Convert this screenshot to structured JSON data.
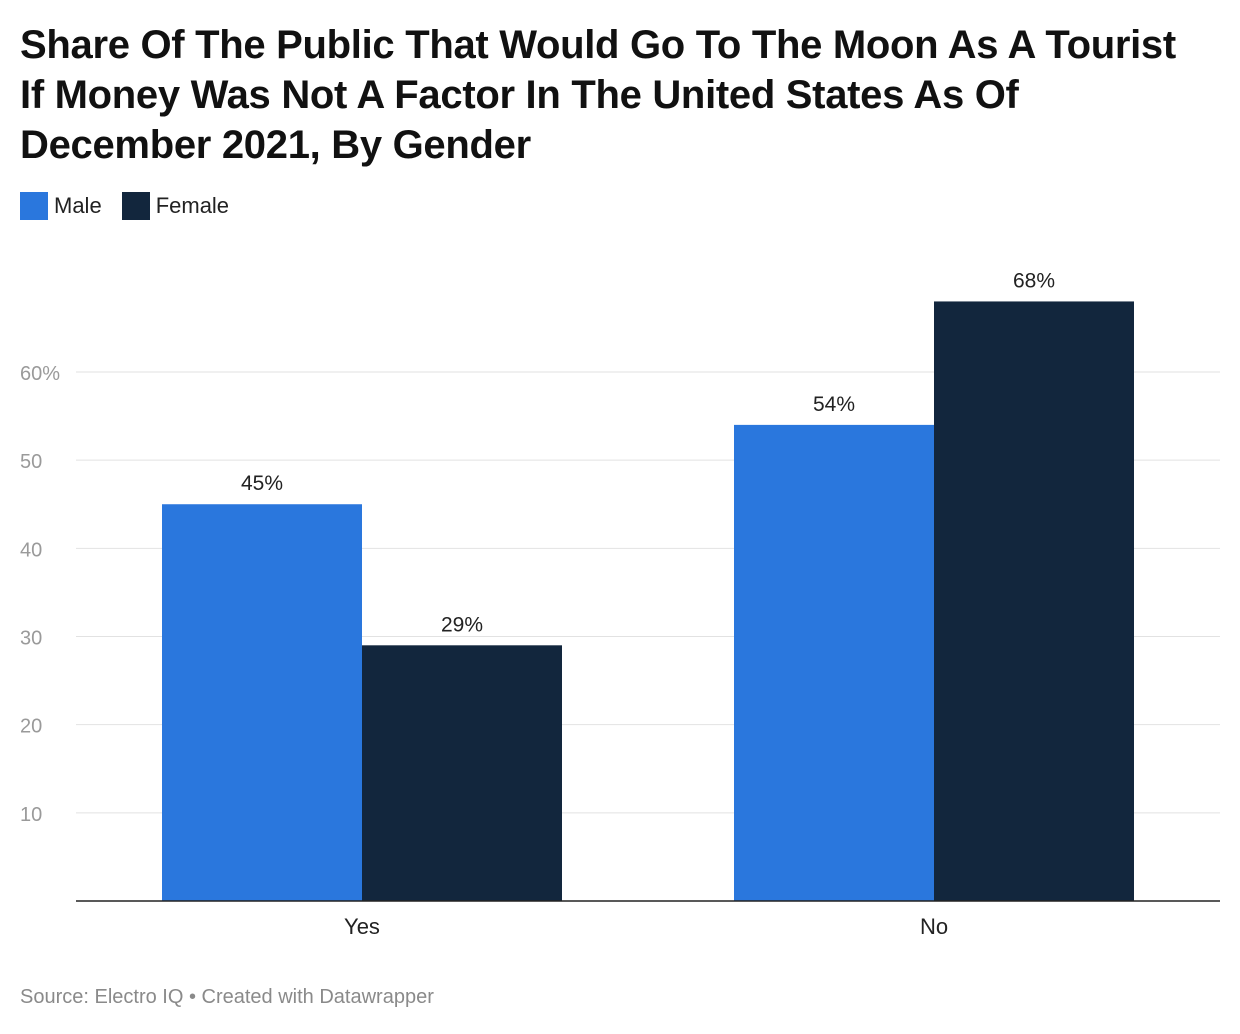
{
  "chart_data": {
    "type": "bar",
    "title": "Share Of The Public That Would Go To The Moon As A Tourist If Money Was Not A Factor In The United States As Of December 2021, By Gender",
    "categories": [
      "Yes",
      "No"
    ],
    "series": [
      {
        "name": "Male",
        "values": [
          45,
          54
        ],
        "color": "#2a77dd",
        "labels": [
          "45%",
          "54%"
        ]
      },
      {
        "name": "Female",
        "values": [
          29,
          68
        ],
        "color": "#12263d",
        "labels": [
          "29%",
          "68%"
        ]
      }
    ],
    "yticks": [
      10,
      20,
      30,
      40,
      50,
      60
    ],
    "ytick_labels": [
      "10",
      "20",
      "30",
      "40",
      "50",
      "60%"
    ],
    "ylim": [
      0,
      70
    ],
    "xlabel": "",
    "ylabel": "",
    "grid": true,
    "legend": "top-left"
  },
  "footer": "Source: Electro IQ • Created with Datawrapper"
}
